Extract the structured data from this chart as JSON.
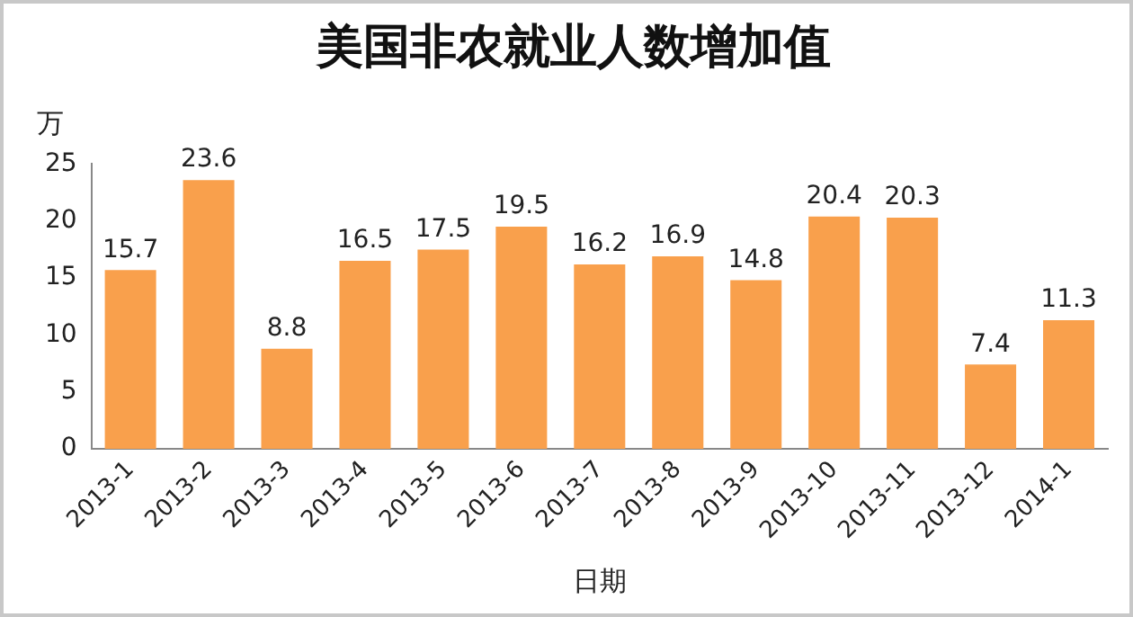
{
  "chart_data": {
    "type": "bar",
    "title": "美国非农就业人数增加值",
    "xlabel": "日期",
    "ylabel": "万",
    "categories": [
      "2013-1",
      "2013-2",
      "2013-3",
      "2013-4",
      "2013-5",
      "2013-6",
      "2013-7",
      "2013-8",
      "2013-9",
      "2013-10",
      "2013-11",
      "2013-12",
      "2014-1"
    ],
    "values": [
      15.7,
      23.6,
      8.8,
      16.5,
      17.5,
      19.5,
      16.2,
      16.9,
      14.8,
      20.4,
      20.3,
      7.4,
      11.3
    ],
    "color": "#f9a04c",
    "ylim": [
      0,
      25
    ],
    "yticks": [
      0,
      5,
      10,
      15,
      20,
      25
    ],
    "grid": false,
    "legend": false,
    "data_labels": true
  }
}
